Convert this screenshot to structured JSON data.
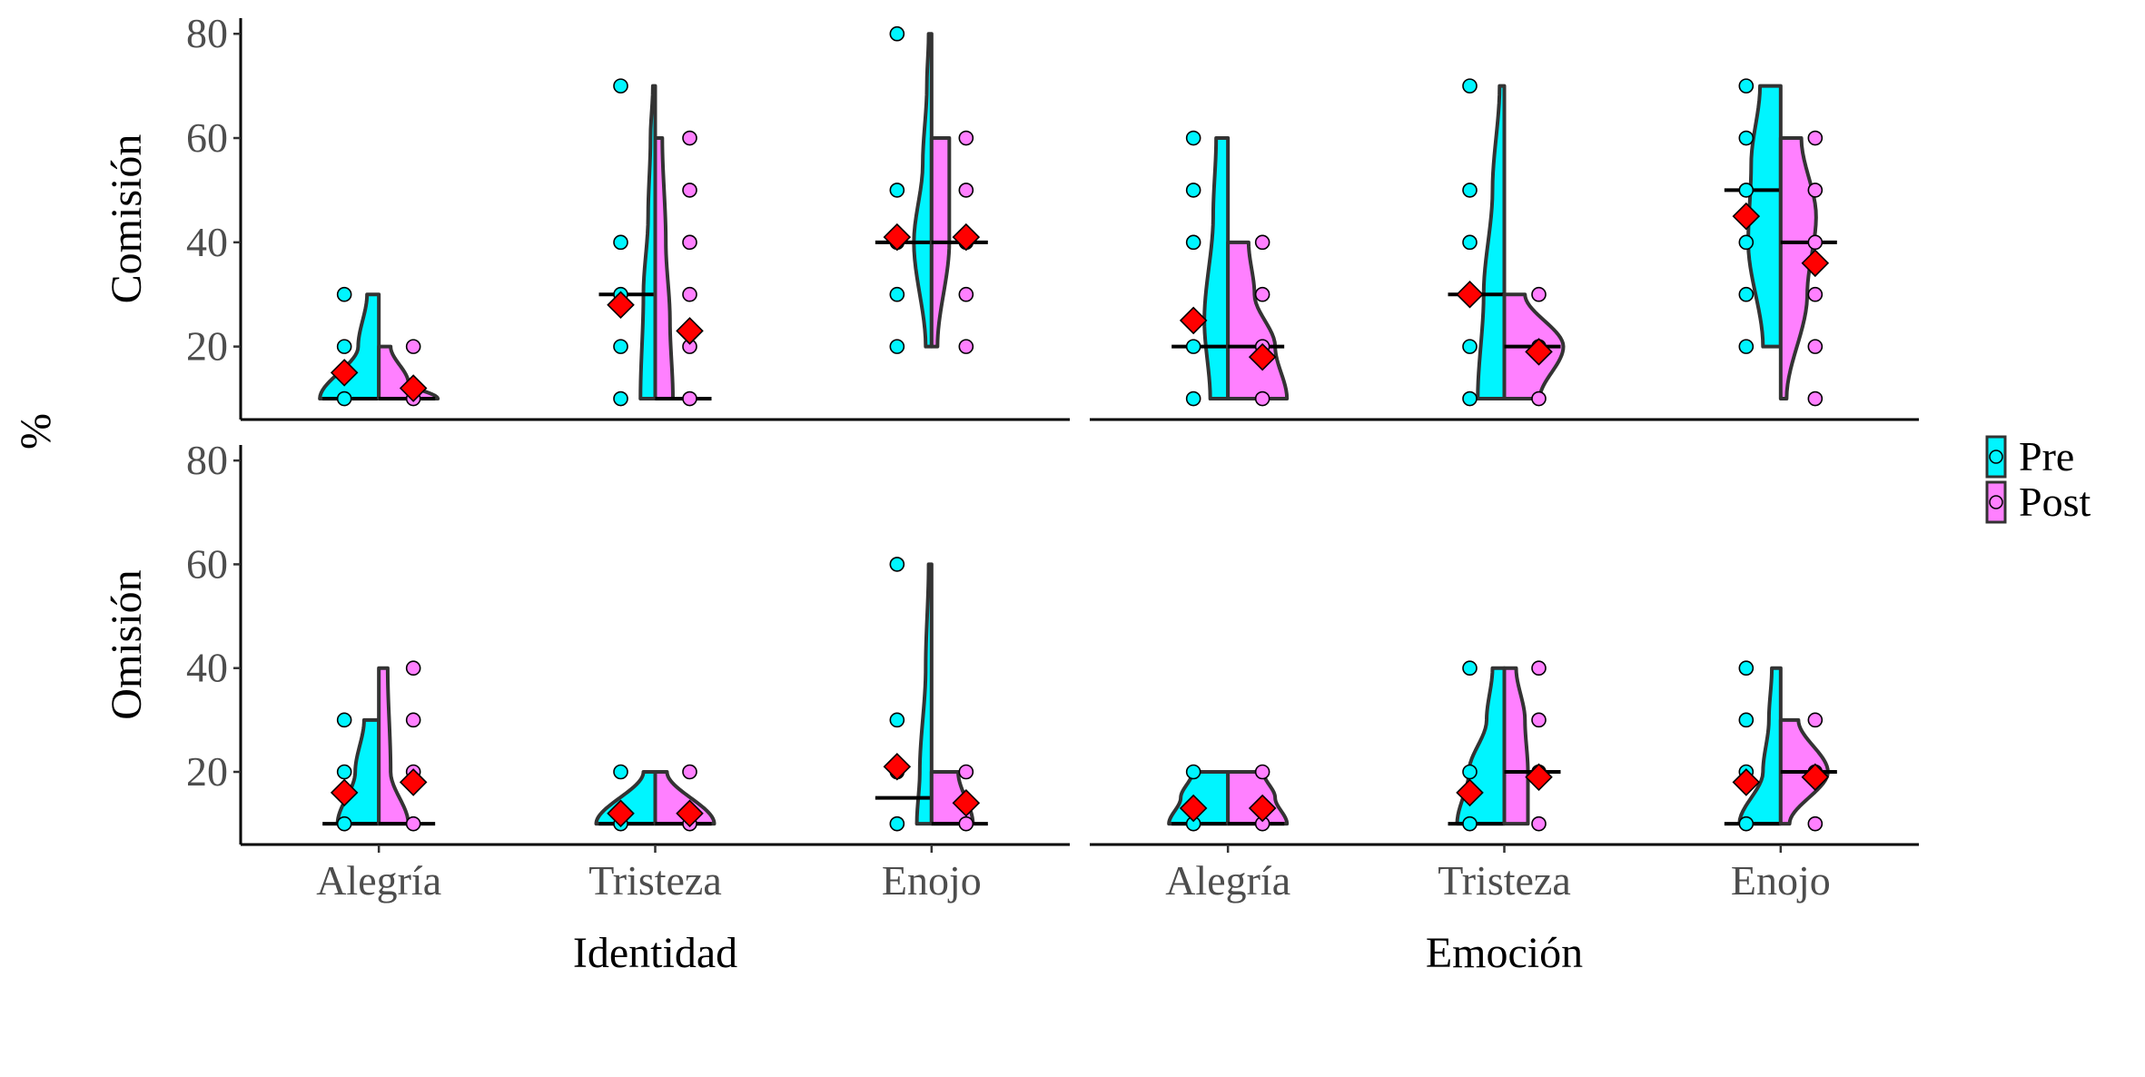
{
  "chart_data": {
    "type": "split-violin",
    "ylabel": "%",
    "ylim": [
      6,
      83
    ],
    "yticks": [
      20,
      40,
      60,
      80
    ],
    "colors": {
      "Pre": "#00F5FF",
      "Post": "#FF80FF",
      "mean_marker": "#FF0000",
      "outline": "#333333"
    },
    "legend": {
      "position": "right",
      "items": [
        {
          "label": "Pre"
        },
        {
          "label": "Post"
        }
      ]
    },
    "rows": [
      {
        "label": "Comisión"
      },
      {
        "label": "Omisión"
      }
    ],
    "columns": [
      {
        "label": "Identidad",
        "categories": [
          "Alegría",
          "Tristeza",
          "Enojo"
        ]
      },
      {
        "label": "Emoción",
        "categories": [
          "Alegría",
          "Tristeza",
          "Enojo"
        ]
      }
    ],
    "panels": [
      {
        "row": 0,
        "col": 0,
        "groups": [
          {
            "category": "Alegría",
            "pre": {
              "points": [
                10,
                20,
                30
              ],
              "mean": 15,
              "median": 10,
              "shape": [
                [
                  10,
                  1.0
                ],
                [
                  20,
                  0.35
                ],
                [
                  30,
                  0.2
                ]
              ]
            },
            "post": {
              "points": [
                10,
                20
              ],
              "mean": 12,
              "median": 10,
              "shape": [
                [
                  10,
                  1.0
                ],
                [
                  13,
                  0.5
                ],
                [
                  20,
                  0.2
                ]
              ]
            }
          },
          {
            "category": "Tristeza",
            "pre": {
              "points": [
                10,
                20,
                30,
                40,
                70
              ],
              "mean": 28,
              "median": 30,
              "shape": [
                [
                  10,
                  0.25
                ],
                [
                  30,
                  0.2
                ],
                [
                  45,
                  0.12
                ],
                [
                  60,
                  0.08
                ],
                [
                  70,
                  0.04
                ]
              ]
            },
            "post": {
              "points": [
                10,
                20,
                30,
                40,
                50,
                60
              ],
              "mean": 23,
              "median": 10,
              "shape": [
                [
                  10,
                  0.3
                ],
                [
                  25,
                  0.25
                ],
                [
                  40,
                  0.18
                ],
                [
                  60,
                  0.12
                ]
              ]
            }
          },
          {
            "category": "Enojo",
            "pre": {
              "points": [
                20,
                30,
                40,
                50,
                80
              ],
              "mean": 41,
              "median": 40,
              "shape": [
                [
                  20,
                  0.1
                ],
                [
                  40,
                  0.3
                ],
                [
                  55,
                  0.15
                ],
                [
                  70,
                  0.08
                ],
                [
                  80,
                  0.05
                ]
              ]
            },
            "post": {
              "points": [
                20,
                30,
                40,
                50,
                60
              ],
              "mean": 41,
              "median": 40,
              "shape": [
                [
                  20,
                  0.1
                ],
                [
                  40,
                  0.3
                ],
                [
                  60,
                  0.3
                ]
              ]
            }
          }
        ]
      },
      {
        "row": 0,
        "col": 1,
        "groups": [
          {
            "category": "Alegría",
            "pre": {
              "points": [
                10,
                20,
                40,
                50,
                60
              ],
              "mean": 25,
              "median": 20,
              "shape": [
                [
                  10,
                  0.3
                ],
                [
                  25,
                  0.4
                ],
                [
                  45,
                  0.25
                ],
                [
                  60,
                  0.2
                ]
              ]
            },
            "post": {
              "points": [
                10,
                20,
                30,
                40
              ],
              "mean": 18,
              "median": 20,
              "shape": [
                [
                  10,
                  1.0
                ],
                [
                  20,
                  0.8
                ],
                [
                  30,
                  0.45
                ],
                [
                  40,
                  0.35
                ]
              ]
            }
          },
          {
            "category": "Tristeza",
            "pre": {
              "points": [
                10,
                20,
                40,
                50,
                70
              ],
              "mean": 30,
              "median": 30,
              "shape": [
                [
                  10,
                  0.45
                ],
                [
                  30,
                  0.35
                ],
                [
                  50,
                  0.2
                ],
                [
                  70,
                  0.08
                ]
              ]
            },
            "post": {
              "points": [
                10,
                20,
                30
              ],
              "mean": 19,
              "median": 20,
              "shape": [
                [
                  10,
                  0.6
                ],
                [
                  20,
                  1.0
                ],
                [
                  30,
                  0.35
                ]
              ]
            }
          },
          {
            "category": "Enojo",
            "pre": {
              "points": [
                20,
                30,
                40,
                50,
                60,
                70
              ],
              "mean": 45,
              "median": 50,
              "shape": [
                [
                  20,
                  0.3
                ],
                [
                  40,
                  0.55
                ],
                [
                  55,
                  0.5
                ],
                [
                  70,
                  0.35
                ]
              ]
            },
            "post": {
              "points": [
                10,
                20,
                30,
                40,
                50,
                60
              ],
              "mean": 36,
              "median": 40,
              "shape": [
                [
                  10,
                  0.1
                ],
                [
                  30,
                  0.45
                ],
                [
                  45,
                  0.6
                ],
                [
                  60,
                  0.35
                ]
              ]
            }
          }
        ]
      },
      {
        "row": 1,
        "col": 0,
        "groups": [
          {
            "category": "Alegría",
            "pre": {
              "points": [
                10,
                20,
                30
              ],
              "mean": 16,
              "median": 10,
              "shape": [
                [
                  10,
                  0.7
                ],
                [
                  20,
                  0.4
                ],
                [
                  30,
                  0.25
                ]
              ]
            },
            "post": {
              "points": [
                10,
                20,
                30,
                40
              ],
              "mean": 18,
              "median": 10,
              "shape": [
                [
                  10,
                  0.5
                ],
                [
                  20,
                  0.2
                ],
                [
                  40,
                  0.15
                ]
              ]
            }
          },
          {
            "category": "Tristeza",
            "pre": {
              "points": [
                10,
                20
              ],
              "mean": 12,
              "median": 10,
              "shape": [
                [
                  10,
                  1.0
                ],
                [
                  20,
                  0.2
                ]
              ]
            },
            "post": {
              "points": [
                10,
                20
              ],
              "mean": 12,
              "median": 10,
              "shape": [
                [
                  10,
                  1.0
                ],
                [
                  20,
                  0.2
                ]
              ]
            }
          },
          {
            "category": "Enojo",
            "pre": {
              "points": [
                10,
                20,
                30,
                60
              ],
              "mean": 21,
              "median": 15,
              "shape": [
                [
                  10,
                  0.25
                ],
                [
                  20,
                  0.2
                ],
                [
                  40,
                  0.1
                ],
                [
                  60,
                  0.05
                ]
              ]
            },
            "post": {
              "points": [
                10,
                20
              ],
              "mean": 14,
              "median": 10,
              "shape": [
                [
                  10,
                  0.7
                ],
                [
                  20,
                  0.45
                ]
              ]
            }
          }
        ]
      },
      {
        "row": 1,
        "col": 1,
        "groups": [
          {
            "category": "Alegría",
            "pre": {
              "points": [
                10,
                20
              ],
              "mean": 13,
              "median": 10,
              "shape": [
                [
                  10,
                  1.0
                ],
                [
                  15,
                  0.8
                ],
                [
                  20,
                  0.6
                ]
              ]
            },
            "post": {
              "points": [
                10,
                20
              ],
              "mean": 13,
              "median": 10,
              "shape": [
                [
                  10,
                  1.0
                ],
                [
                  15,
                  0.8
                ],
                [
                  20,
                  0.6
                ]
              ]
            }
          },
          {
            "category": "Tristeza",
            "pre": {
              "points": [
                10,
                20,
                40
              ],
              "mean": 16,
              "median": 10,
              "shape": [
                [
                  10,
                  0.8
                ],
                [
                  20,
                  0.6
                ],
                [
                  30,
                  0.3
                ],
                [
                  40,
                  0.2
                ]
              ]
            },
            "post": {
              "points": [
                10,
                20,
                30,
                40
              ],
              "mean": 19,
              "median": 20,
              "shape": [
                [
                  10,
                  0.4
                ],
                [
                  20,
                  0.4
                ],
                [
                  30,
                  0.35
                ],
                [
                  40,
                  0.2
                ]
              ]
            }
          },
          {
            "category": "Enojo",
            "pre": {
              "points": [
                10,
                20,
                30,
                40
              ],
              "mean": 18,
              "median": 10,
              "shape": [
                [
                  10,
                  0.7
                ],
                [
                  20,
                  0.3
                ],
                [
                  30,
                  0.2
                ],
                [
                  40,
                  0.15
                ]
              ]
            },
            "post": {
              "points": [
                10,
                20,
                30
              ],
              "mean": 19,
              "median": 20,
              "shape": [
                [
                  10,
                  0.15
                ],
                [
                  20,
                  0.8
                ],
                [
                  30,
                  0.3
                ]
              ]
            }
          }
        ]
      }
    ]
  }
}
